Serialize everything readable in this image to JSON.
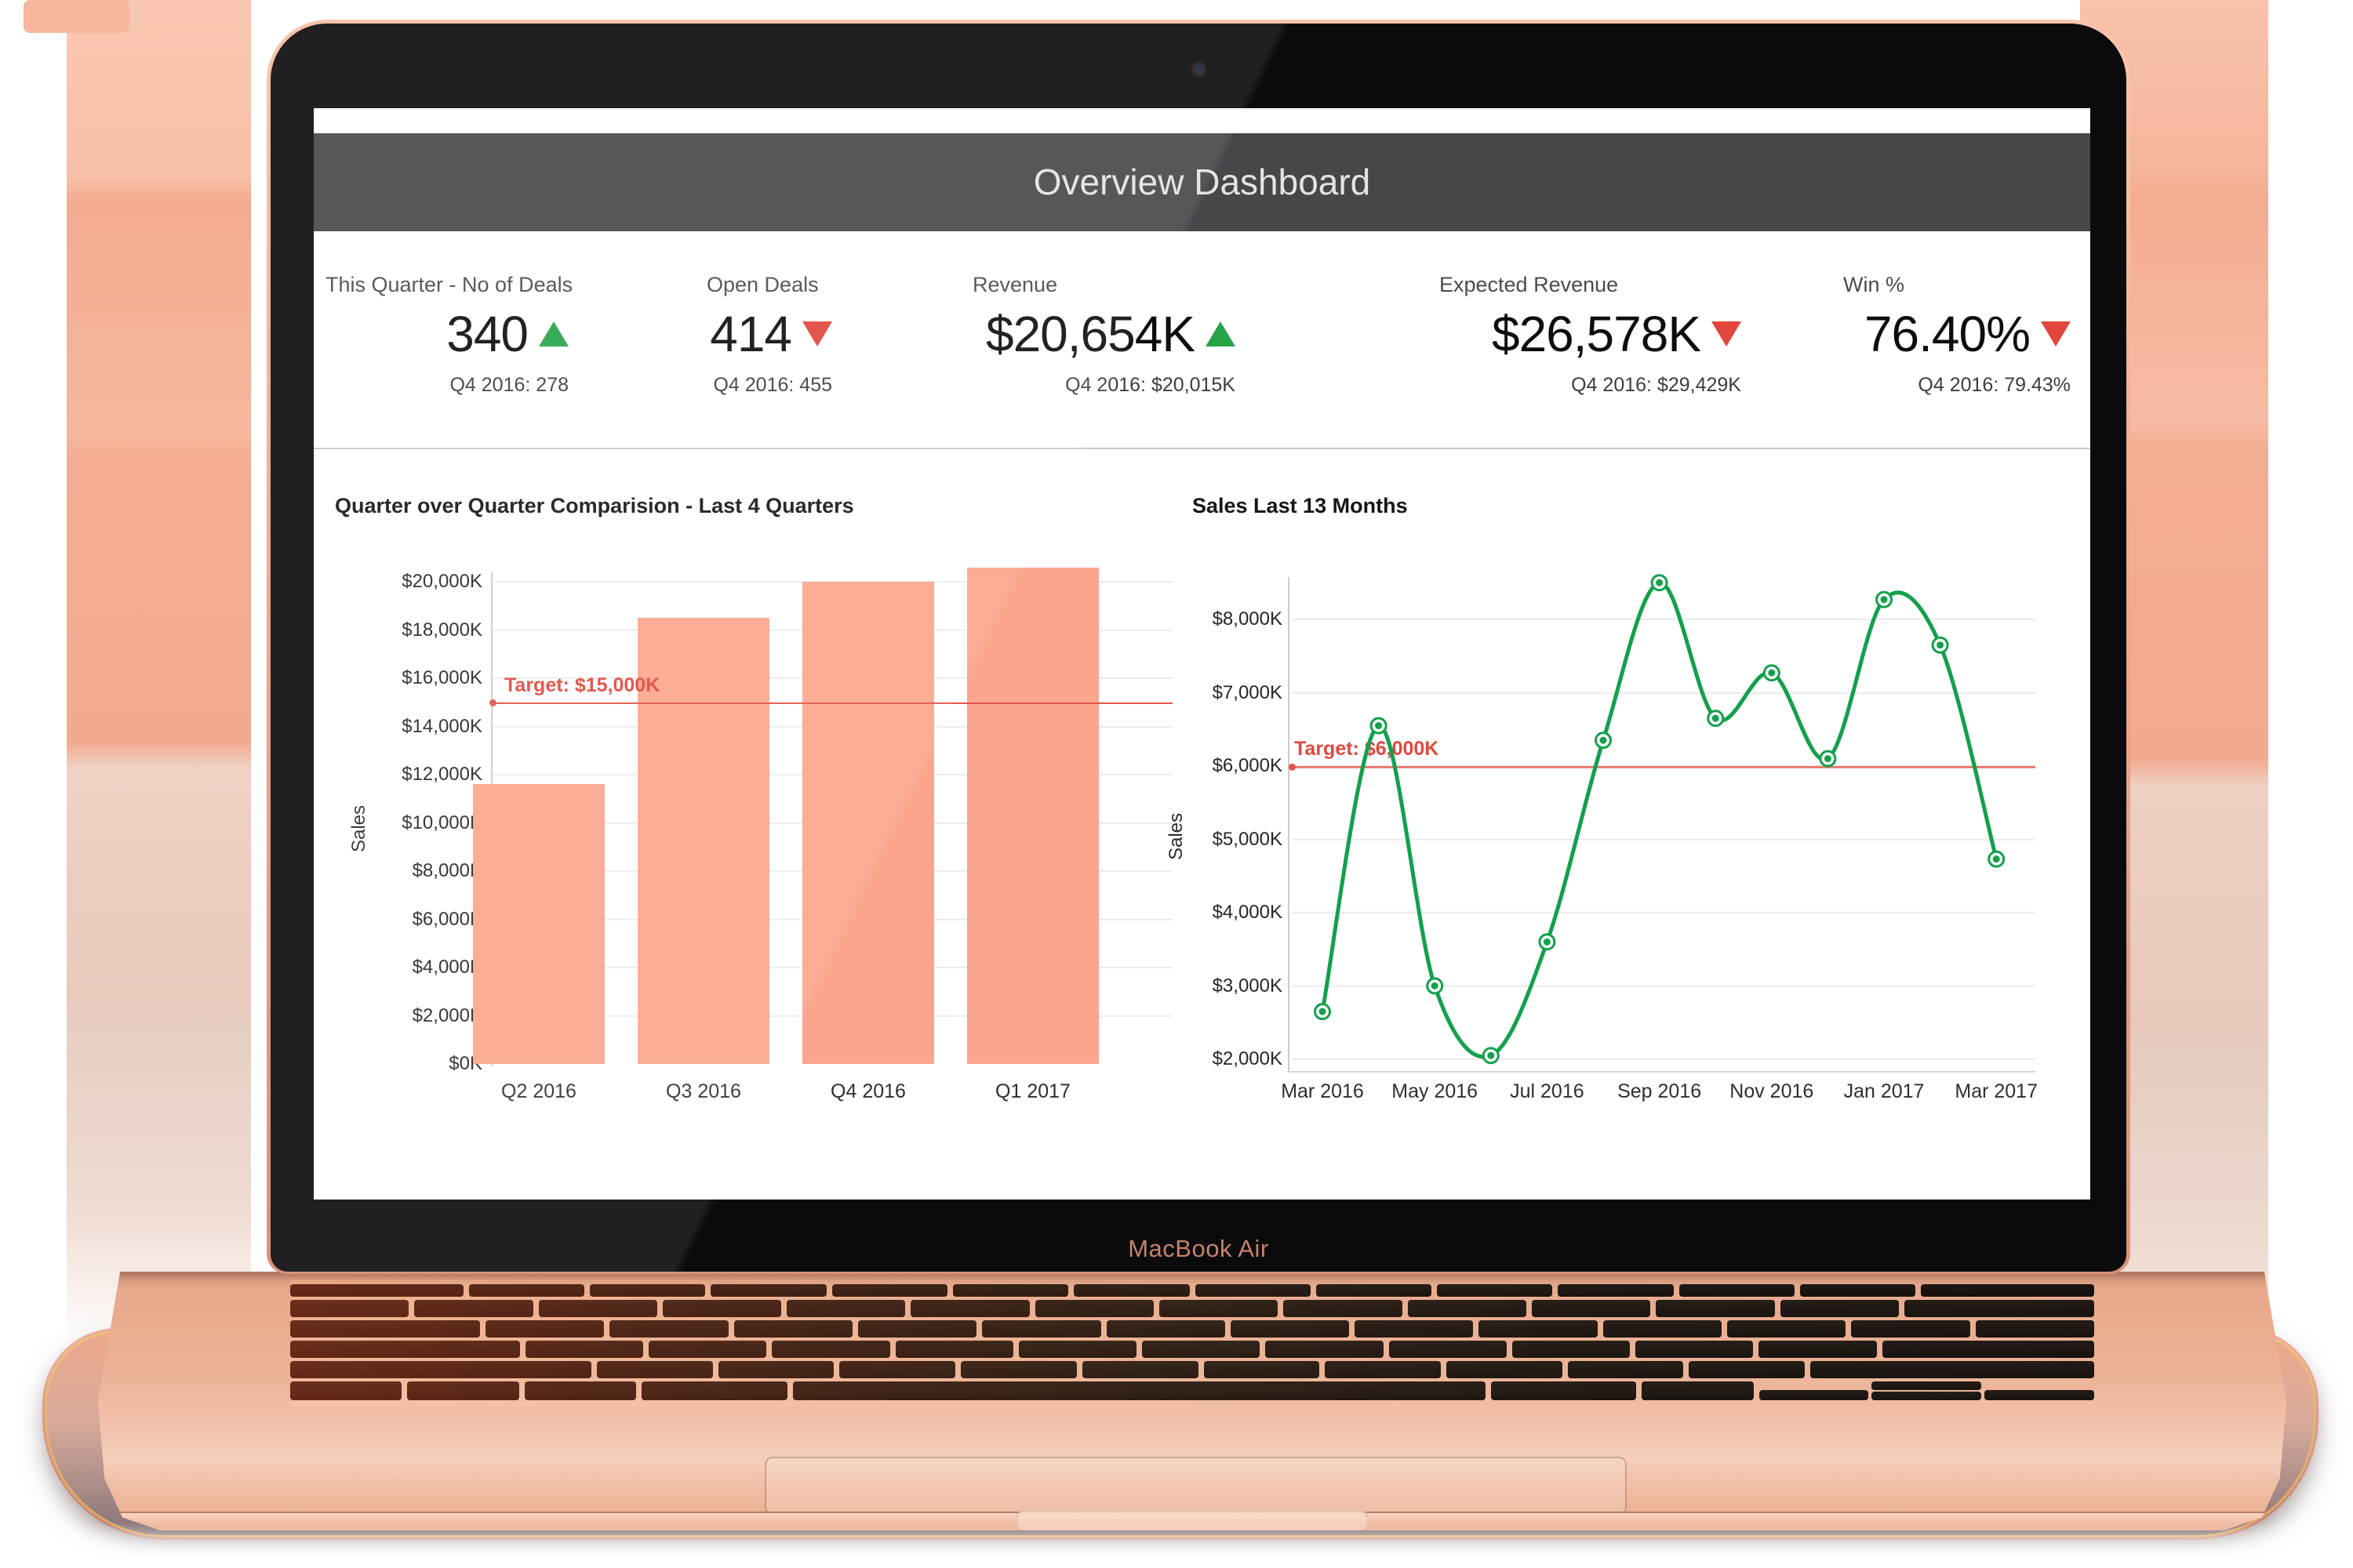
{
  "device": {
    "label": "MacBook Air"
  },
  "dashboard": {
    "header": {
      "title": "Overview Dashboard",
      "bg_color": "#47464b",
      "text_color": "#e4e3e6"
    },
    "kpis": [
      {
        "label": "This Quarter - No of Deals",
        "value": "340",
        "trend": "up",
        "sub": "Q4 2016: 278"
      },
      {
        "label": "Open Deals",
        "value": "414",
        "trend": "down",
        "sub": "Q4 2016: 455"
      },
      {
        "label": "Revenue",
        "value": "$20,654K",
        "trend": "up",
        "sub": "Q4 2016: $20,015K"
      },
      {
        "label": "Expected Revenue",
        "value": "$26,578K",
        "trend": "down",
        "sub": "Q4 2016: $29,429K"
      },
      {
        "label": "Win %",
        "value": "76.40%",
        "trend": "down",
        "sub": "Q4 2016: 79.43%"
      }
    ],
    "trend_colors": {
      "up": "#27a449",
      "down": "#e2453c"
    }
  },
  "chart_data": [
    {
      "type": "bar",
      "title": "Quarter over Quarter Comparision - Last 4 Quarters",
      "categories": [
        "Q2 2016",
        "Q3 2016",
        "Q4 2016",
        "Q1 2017"
      ],
      "values": [
        11600,
        18500,
        20000,
        20600
      ],
      "unit": "$K",
      "xlabel": "",
      "ylabel": "Sales",
      "ylim": [
        0,
        20000
      ],
      "ytick_step": 2000,
      "ytick_labels": [
        "$0K",
        "$2,000K",
        "$4,000K",
        "$6,000K",
        "$8,000K",
        "$10,000K",
        "$12,000K",
        "$14,000K",
        "$16,000K",
        "$18,000K",
        "$20,000K"
      ],
      "target": {
        "value": 15000,
        "label": "Target: $15,000K",
        "color": "#e0493f"
      },
      "bar_color": "#fba58c",
      "grid": true,
      "legend": "none"
    },
    {
      "type": "line",
      "title": "Sales Last 13 Months",
      "x": [
        "Mar 2016",
        "Apr 2016",
        "May 2016",
        "Jun 2016",
        "Jul 2016",
        "Aug 2016",
        "Sep 2016",
        "Oct 2016",
        "Nov 2016",
        "Dec 2016",
        "Jan 2017",
        "Feb 2017",
        "Mar 2017"
      ],
      "values": [
        2650,
        6550,
        3000,
        2050,
        3600,
        6350,
        8500,
        6650,
        7270,
        6100,
        8270,
        7650,
        4730
      ],
      "xtick_labels": [
        "Mar 2016",
        "May 2016",
        "Jul 2016",
        "Sep 2016",
        "Nov 2016",
        "Jan 2017",
        "Mar 2017"
      ],
      "unit": "$K",
      "xlabel": "",
      "ylabel": "Sales",
      "ylim": [
        2000,
        8000
      ],
      "ytick_step": 1000,
      "ytick_labels": [
        "$2,000K",
        "$3,000K",
        "$4,000K",
        "$5,000K",
        "$6,000K",
        "$7,000K",
        "$8,000K"
      ],
      "target": {
        "value": 6000,
        "label": "Target: $6,000K",
        "color": "#e0493f"
      },
      "line_color": "#12a04b",
      "grid": true,
      "legend": "none"
    }
  ]
}
